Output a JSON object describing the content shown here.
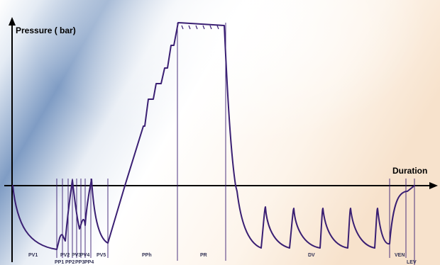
{
  "diagram": {
    "y_axis_label": "Pressure ( bar)",
    "x_axis_label": "Duration",
    "phase_labels": {
      "pv1": "PV1",
      "pv2": "PV2",
      "pp1": "PP1",
      "pp2": "PP2",
      "pv3": "PV3",
      "pp3": "PP3",
      "pv4": "PV4",
      "pp4": "PP4",
      "pv5": "PV5",
      "pph": "PPh",
      "pr": "PR",
      "dv": "DV",
      "ven": "VEN",
      "lev": "LEV"
    },
    "colors": {
      "curve": "#3a1f73",
      "divider": "#3a1f73",
      "axis": "#000000",
      "background_blue": "#7f9cc4",
      "background_peach": "#f7e2cc"
    }
  }
}
